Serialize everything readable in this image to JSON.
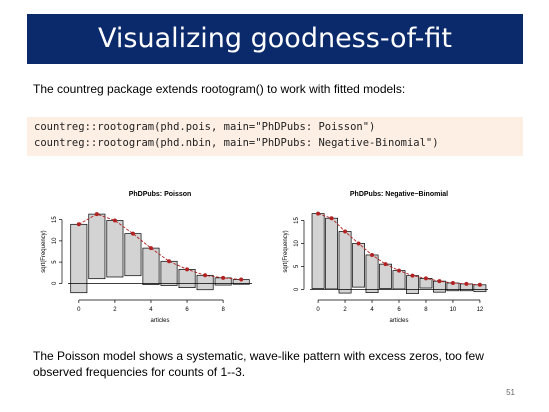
{
  "slide": {
    "title": "Visualizing goodness-of-fit",
    "intro": "The countreg package extends rootogram() to work with fitted models:",
    "code_lines": [
      "countreg::rootogram(phd.pois, main=\"PhDPubs: Poisson\")",
      "countreg::rootogram(phd.nbin, main=\"PhDPubs: Negative-Binomial\")"
    ],
    "footer": "The Poisson model shows a systematic, wave-like pattern with excess zeros, too few observed frequencies for counts of 1--3.",
    "page_number": "51"
  },
  "colors": {
    "title_bg": "#0b2a6b",
    "code_bg": "#fdefe4",
    "bar_fill": "#d3d3d3",
    "fit_line": "#b22222"
  },
  "chart_data": [
    {
      "type": "bar",
      "title": "PhDPubs: Poisson",
      "xlabel": "articles",
      "ylabel": "sqrt(Frequency)",
      "xlim": [
        -0.6,
        9.6
      ],
      "ylim": [
        -2.5,
        17.5
      ],
      "xticks": [
        0,
        2,
        4,
        6,
        8
      ],
      "yticks": [
        0,
        5,
        10,
        15
      ],
      "x": [
        0,
        1,
        2,
        3,
        4,
        5,
        6,
        7,
        8,
        9
      ],
      "expected": [
        13.9,
        16.3,
        14.8,
        11.7,
        8.3,
        5.2,
        3.3,
        1.9,
        1.3,
        0.9
      ],
      "bar_bottom": [
        -2.2,
        1.1,
        1.5,
        1.8,
        -0.3,
        -0.5,
        -1.0,
        -1.5,
        -0.4,
        -0.2
      ]
    },
    {
      "type": "bar",
      "title": "PhDPubs: Negative−Binomial",
      "xlabel": "articles",
      "ylabel": "sqrt(Frequency)",
      "xlim": [
        -0.6,
        12.6
      ],
      "ylim": [
        -1,
        17.5
      ],
      "xticks": [
        0,
        2,
        4,
        6,
        8,
        10,
        12
      ],
      "yticks": [
        0,
        5,
        10,
        15
      ],
      "x": [
        0,
        1,
        2,
        3,
        4,
        5,
        6,
        7,
        8,
        9,
        10,
        11,
        12
      ],
      "expected": [
        16.5,
        15.5,
        12.6,
        10.0,
        7.5,
        5.5,
        4.1,
        3.0,
        2.4,
        1.8,
        1.4,
        1.2,
        1.0
      ],
      "bar_bottom": [
        0.2,
        0.1,
        -0.8,
        0.5,
        -0.7,
        0.2,
        0.1,
        -0.9,
        0.3,
        -0.6,
        -0.3,
        -0.3,
        -0.5
      ]
    }
  ]
}
